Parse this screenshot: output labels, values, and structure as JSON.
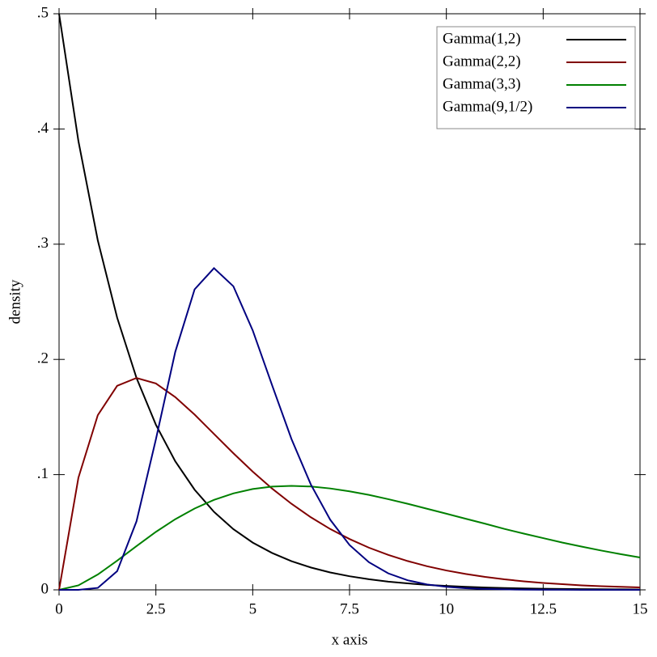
{
  "chart_data": {
    "type": "line",
    "xlabel": "x axis",
    "ylabel": "density",
    "x": [
      0,
      0.5,
      1,
      1.5,
      2,
      2.5,
      3,
      3.5,
      4,
      4.5,
      5,
      5.5,
      6,
      6.5,
      7,
      7.5,
      8,
      8.5,
      9,
      9.5,
      10,
      10.5,
      11,
      11.5,
      12,
      12.5,
      13,
      13.5,
      14,
      14.5,
      15
    ],
    "series": [
      {
        "name": "Gamma(1,2)",
        "color": "#000000",
        "values": [
          0.5,
          0.3894,
          0.3033,
          0.2362,
          0.1839,
          0.1433,
          0.1116,
          0.0869,
          0.0677,
          0.0527,
          0.041,
          0.032,
          0.0249,
          0.0194,
          0.0151,
          0.0118,
          0.0092,
          0.0071,
          0.0056,
          0.0043,
          0.0034,
          0.0026,
          0.002,
          0.0016,
          0.0012,
          0.001,
          0.0008,
          0.0006,
          0.0005,
          0.0004,
          0.0003
        ]
      },
      {
        "name": "Gamma(2,2)",
        "color": "#800000",
        "values": [
          0,
          0.0974,
          0.1516,
          0.1771,
          0.1839,
          0.1791,
          0.1673,
          0.1521,
          0.1353,
          0.1186,
          0.1026,
          0.0879,
          0.0747,
          0.063,
          0.0528,
          0.0441,
          0.0366,
          0.0303,
          0.025,
          0.0205,
          0.0168,
          0.0138,
          0.0112,
          0.0091,
          0.0074,
          0.006,
          0.0049,
          0.0039,
          0.0032,
          0.0026,
          0.0021
        ]
      },
      {
        "name": "Gamma(3,3)",
        "color": "#008000",
        "values": [
          0,
          0.0039,
          0.0133,
          0.0253,
          0.038,
          0.0503,
          0.0613,
          0.0706,
          0.0781,
          0.0837,
          0.0875,
          0.0896,
          0.0902,
          0.0897,
          0.088,
          0.0855,
          0.0824,
          0.0787,
          0.0747,
          0.0704,
          0.0661,
          0.0617,
          0.0574,
          0.0529,
          0.0488,
          0.0449,
          0.041,
          0.0375,
          0.0341,
          0.031,
          0.0281
        ]
      },
      {
        "name": "Gamma(9,1/2)",
        "color": "#000080",
        "values": [
          0,
          0,
          0.0017,
          0.0162,
          0.0595,
          0.1306,
          0.2065,
          0.2608,
          0.2792,
          0.2635,
          0.2252,
          0.1776,
          0.131,
          0.0915,
          0.0609,
          0.0389,
          0.024,
          0.0143,
          0.0083,
          0.0047,
          0.0026,
          0.0014,
          0.0008,
          0.0004,
          0.0002,
          0.0001,
          0.0001,
          0,
          0,
          0,
          0
        ]
      }
    ],
    "xlim": [
      0,
      15
    ],
    "ylim": [
      0,
      0.5
    ],
    "xticks": [
      0,
      2.5,
      5,
      7.5,
      10,
      12.5,
      15
    ],
    "yticks": [
      0,
      {
        "value": 0.1,
        "label": ".1"
      },
      {
        "value": 0.2,
        "label": ".2"
      },
      {
        "value": 0.3,
        "label": ".3"
      },
      {
        "value": 0.4,
        "label": ".4"
      },
      {
        "value": 0.5,
        "label": ".5"
      }
    ],
    "legend": "top-right"
  }
}
